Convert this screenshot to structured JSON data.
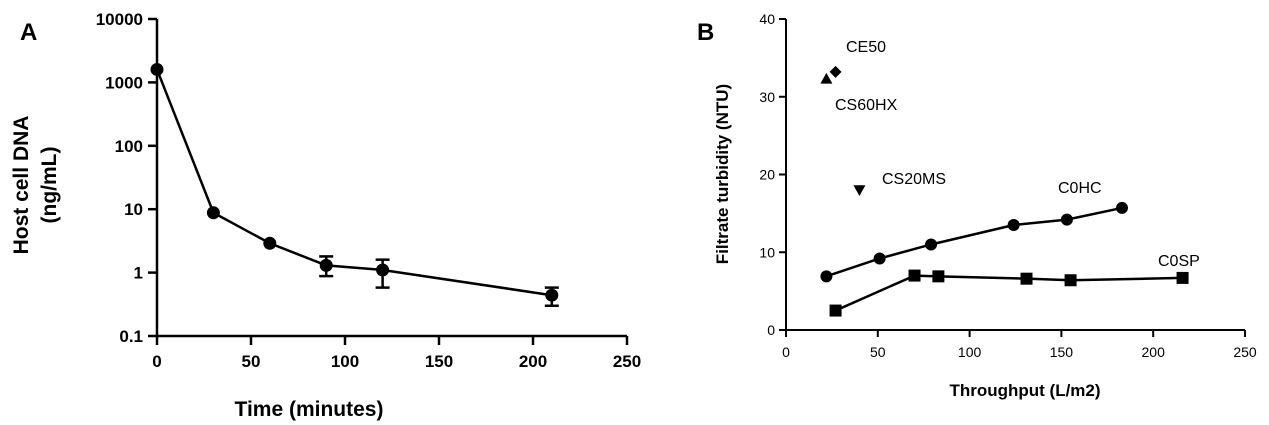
{
  "chart_data": [
    {
      "panel": "A",
      "type": "line",
      "title": "",
      "xlabel": "Time (minutes)",
      "ylabel_line1": "Host cell DNA",
      "ylabel_line2": "(ng/mL)",
      "yscale": "log",
      "xlim": [
        0,
        250
      ],
      "ylim": [
        0.1,
        10000
      ],
      "xticks": [
        0,
        50,
        100,
        150,
        200,
        250
      ],
      "xtick_labels": [
        "0",
        "50",
        "100",
        "150",
        "200",
        "250"
      ],
      "yticks": [
        0.1,
        1,
        10,
        100,
        1000,
        10000
      ],
      "ytick_labels": [
        "0.1",
        "1",
        "10",
        "100",
        "1000",
        "10000"
      ],
      "series": [
        {
          "name": "Host cell DNA",
          "marker": "circle",
          "x": [
            0,
            30,
            60,
            90,
            120,
            210
          ],
          "y": [
            1600,
            8.8,
            2.9,
            1.3,
            1.1,
            0.44
          ],
          "err_low": [
            1600,
            8.8,
            2.9,
            0.88,
            0.58,
            0.3
          ],
          "err_high": [
            1600,
            8.8,
            2.9,
            1.8,
            1.6,
            0.58
          ]
        }
      ]
    },
    {
      "panel": "B",
      "type": "scatter",
      "title": "",
      "xlabel": "Throughput (L/m2)",
      "ylabel": "Filtrate turbidity (NTU)",
      "xlim": [
        0,
        250
      ],
      "ylim": [
        0,
        40
      ],
      "xticks": [
        0,
        50,
        100,
        150,
        200,
        250
      ],
      "xtick_labels": [
        "0",
        "50",
        "100",
        "150",
        "200",
        "250"
      ],
      "yticks": [
        0,
        10,
        20,
        30,
        40
      ],
      "ytick_labels": [
        "0",
        "10",
        "20",
        "30",
        "40"
      ],
      "series": [
        {
          "name": "C0HC",
          "marker": "circle",
          "line": true,
          "x": [
            22,
            51,
            79,
            124,
            153,
            183
          ],
          "y": [
            6.9,
            9.2,
            11.0,
            13.5,
            14.2,
            15.7
          ]
        },
        {
          "name": "C0SP",
          "marker": "square",
          "line": true,
          "x": [
            27,
            70,
            83,
            131,
            155,
            216
          ],
          "y": [
            2.5,
            7.0,
            6.9,
            6.6,
            6.4,
            6.7
          ]
        },
        {
          "name": "CE50",
          "marker": "diamond",
          "line": false,
          "x": [
            27
          ],
          "y": [
            33.2
          ]
        },
        {
          "name": "CS60HX",
          "marker": "triangle-up",
          "line": false,
          "x": [
            22
          ],
          "y": [
            32.3
          ]
        },
        {
          "name": "CS20MS",
          "marker": "triangle-down",
          "line": false,
          "x": [
            40
          ],
          "y": [
            18.0
          ]
        }
      ],
      "annotations": [
        "CE50",
        "CS60HX",
        "CS20MS",
        "C0HC",
        "C0SP"
      ]
    }
  ],
  "panels": {
    "a_letter": "A",
    "b_letter": "B"
  }
}
